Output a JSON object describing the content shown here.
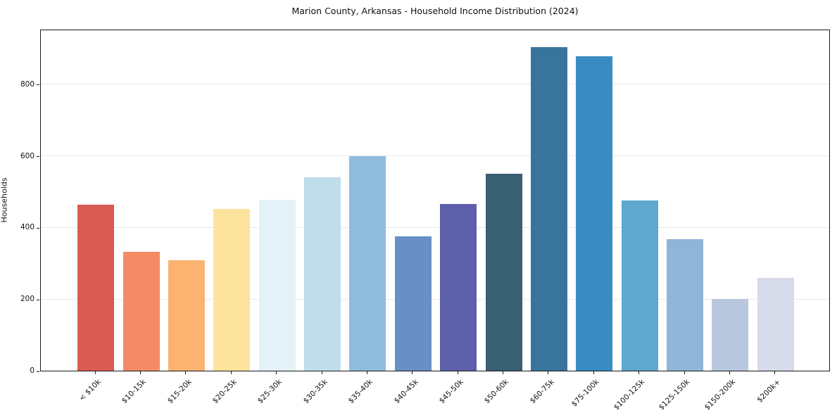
{
  "title": "Marion County, Arkansas - Household Income Distribution (2024)",
  "chart_data": {
    "type": "bar",
    "title": "Marion County, Arkansas - Household Income Distribution (2024)",
    "xlabel": "",
    "ylabel": "Households",
    "categories": [
      "< $10k",
      "$10-15k",
      "$15-20k",
      "$20-25k",
      "$25-30k",
      "$30-35k",
      "$35-40k",
      "$40-45k",
      "$45-50k",
      "$50-60k",
      "$60-75k",
      "$75-100k",
      "$100-125k",
      "$125-150k",
      "$150-200k",
      "$200k+"
    ],
    "values": [
      463,
      332,
      309,
      452,
      478,
      540,
      599,
      376,
      465,
      551,
      904,
      878,
      475,
      368,
      200,
      260
    ],
    "bar_colors": [
      "#d95b53",
      "#f48b67",
      "#fab370",
      "#fde49e",
      "#e4f1f6",
      "#bfddea",
      "#90bcdb",
      "#6890c5",
      "#5d5faa",
      "#395f72",
      "#38749b",
      "#388cc2",
      "#5da8cc",
      "#8fb5d8",
      "#b8c7dd",
      "#d7dae8"
    ],
    "yticks": [
      0,
      200,
      400,
      600,
      800
    ],
    "ylim": [
      0,
      955
    ],
    "grid": "horizontal-only",
    "grid_color": "#e9e9ee",
    "legend": "none",
    "background_color": "#ffffff",
    "spine_color": "#1a1a1a",
    "x_tick_rotation_deg": 45
  }
}
